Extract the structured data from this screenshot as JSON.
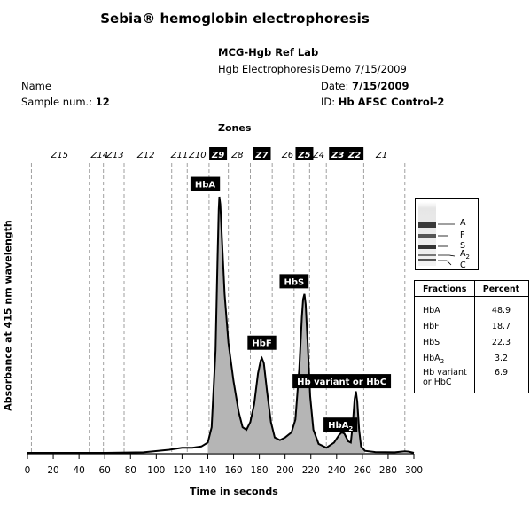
{
  "title": "Sebia® hemoglobin electrophoresis",
  "header": {
    "lab": "MCG-Hgb Ref Lab",
    "test": "Hgb Electrophoresis",
    "demo": "Demo 7/15/2009",
    "name_label": "Name",
    "date_label": "Date:",
    "date_value": "7/15/2009",
    "sample_label": "Sample num.:",
    "sample_value": "12",
    "id_label": "ID:",
    "id_value": "Hb AFSC Control-2"
  },
  "zones_title": "Zones",
  "gel": {
    "labels": [
      "A",
      "F",
      "S",
      "A",
      "C"
    ],
    "a2_sub": "2"
  },
  "table": {
    "col1": "Fractions",
    "col2": "Percent",
    "rows": [
      {
        "name": "HbA",
        "sub": "",
        "value": "48.9"
      },
      {
        "name": "HbF",
        "sub": "",
        "value": "18.7"
      },
      {
        "name": "HbS",
        "sub": "",
        "value": "22.3"
      },
      {
        "name": "HbA",
        "sub": "2",
        "value": "3.2"
      },
      {
        "name": "Hb variant or HbC",
        "sub": "",
        "value": "6.9"
      }
    ]
  },
  "chart_data": {
    "type": "line",
    "title": "",
    "xlabel": "Time in seconds",
    "ylabel": "Absorbance at 415 nm wavelength",
    "xlim": [
      0,
      300
    ],
    "ylim": [
      0,
      1
    ],
    "xticks": [
      0,
      20,
      40,
      60,
      80,
      100,
      120,
      140,
      160,
      180,
      200,
      220,
      240,
      260,
      280,
      300
    ],
    "zones": [
      {
        "label": "Z15",
        "center": 25,
        "highlight": false
      },
      {
        "label": "Z14",
        "center": 56,
        "highlight": false
      },
      {
        "label": "Z13",
        "center": 68,
        "highlight": false
      },
      {
        "label": "Z12",
        "center": 92,
        "highlight": false
      },
      {
        "label": "Z11",
        "center": 118,
        "highlight": false
      },
      {
        "label": "Z10",
        "center": 132,
        "highlight": false
      },
      {
        "label": "Z9",
        "center": 148,
        "highlight": true
      },
      {
        "label": "Z8",
        "center": 163,
        "highlight": false
      },
      {
        "label": "Z7",
        "center": 182,
        "highlight": true
      },
      {
        "label": "Z6",
        "center": 202,
        "highlight": false
      },
      {
        "label": "Z5",
        "center": 215,
        "highlight": true
      },
      {
        "label": "Z4",
        "center": 226,
        "highlight": false
      },
      {
        "label": "Z3",
        "center": 241,
        "highlight": true
      },
      {
        "label": "Z2",
        "center": 254,
        "highlight": true
      },
      {
        "label": "Z1",
        "center": 275,
        "highlight": false
      }
    ],
    "zone_boundaries": [
      3,
      48,
      59,
      75,
      112,
      124,
      141,
      156,
      173,
      190,
      207,
      219,
      232,
      248,
      261,
      293
    ],
    "peaks": [
      {
        "label": "HbA",
        "sub": "",
        "x": 149,
        "height": 1.0,
        "label_x": 138,
        "label_y": 1.05
      },
      {
        "label": "HbF",
        "sub": "",
        "x": 182,
        "height": 0.37,
        "label_x": 182,
        "label_y": 0.43
      },
      {
        "label": "HbS",
        "sub": "",
        "x": 215,
        "height": 0.62,
        "label_x": 207,
        "label_y": 0.67
      },
      {
        "label": "HbA",
        "sub": "2",
        "x": 245,
        "height": 0.08,
        "label_x": 243,
        "label_y": 0.11
      },
      {
        "label": "Hb variant or HbC",
        "sub": "",
        "x": 255,
        "height": 0.24,
        "label_x": 244,
        "label_y": 0.28
      }
    ],
    "trace": [
      [
        0,
        0.0
      ],
      [
        60,
        0.0
      ],
      [
        90,
        0.002
      ],
      [
        110,
        0.012
      ],
      [
        120,
        0.02
      ],
      [
        128,
        0.02
      ],
      [
        135,
        0.025
      ],
      [
        140,
        0.04
      ],
      [
        143,
        0.1
      ],
      [
        146,
        0.4
      ],
      [
        147.5,
        0.75
      ],
      [
        148.5,
        0.95
      ],
      [
        149,
        1.0
      ],
      [
        149.7,
        0.97
      ],
      [
        151,
        0.83
      ],
      [
        153,
        0.62
      ],
      [
        156,
        0.43
      ],
      [
        160,
        0.28
      ],
      [
        164,
        0.16
      ],
      [
        167,
        0.1
      ],
      [
        170,
        0.09
      ],
      [
        173,
        0.12
      ],
      [
        176,
        0.19
      ],
      [
        179,
        0.31
      ],
      [
        181,
        0.36
      ],
      [
        182,
        0.37
      ],
      [
        183.5,
        0.35
      ],
      [
        186,
        0.24
      ],
      [
        189,
        0.12
      ],
      [
        192,
        0.06
      ],
      [
        196,
        0.05
      ],
      [
        200,
        0.06
      ],
      [
        205,
        0.08
      ],
      [
        208,
        0.13
      ],
      [
        211,
        0.33
      ],
      [
        213,
        0.53
      ],
      [
        214,
        0.6
      ],
      [
        215,
        0.62
      ],
      [
        216,
        0.58
      ],
      [
        217.5,
        0.43
      ],
      [
        219.5,
        0.22
      ],
      [
        222,
        0.09
      ],
      [
        226,
        0.035
      ],
      [
        232,
        0.02
      ],
      [
        238,
        0.04
      ],
      [
        242,
        0.07
      ],
      [
        244,
        0.08
      ],
      [
        246,
        0.075
      ],
      [
        249,
        0.045
      ],
      [
        251,
        0.04
      ],
      [
        252.5,
        0.11
      ],
      [
        254,
        0.21
      ],
      [
        255,
        0.24
      ],
      [
        256,
        0.2
      ],
      [
        257.5,
        0.09
      ],
      [
        259,
        0.025
      ],
      [
        262,
        0.008
      ],
      [
        270,
        0.003
      ],
      [
        285,
        0.002
      ],
      [
        293,
        0.006
      ],
      [
        296,
        0.005
      ],
      [
        300,
        0.0
      ]
    ],
    "shaded_range": [
      140,
      262
    ]
  }
}
